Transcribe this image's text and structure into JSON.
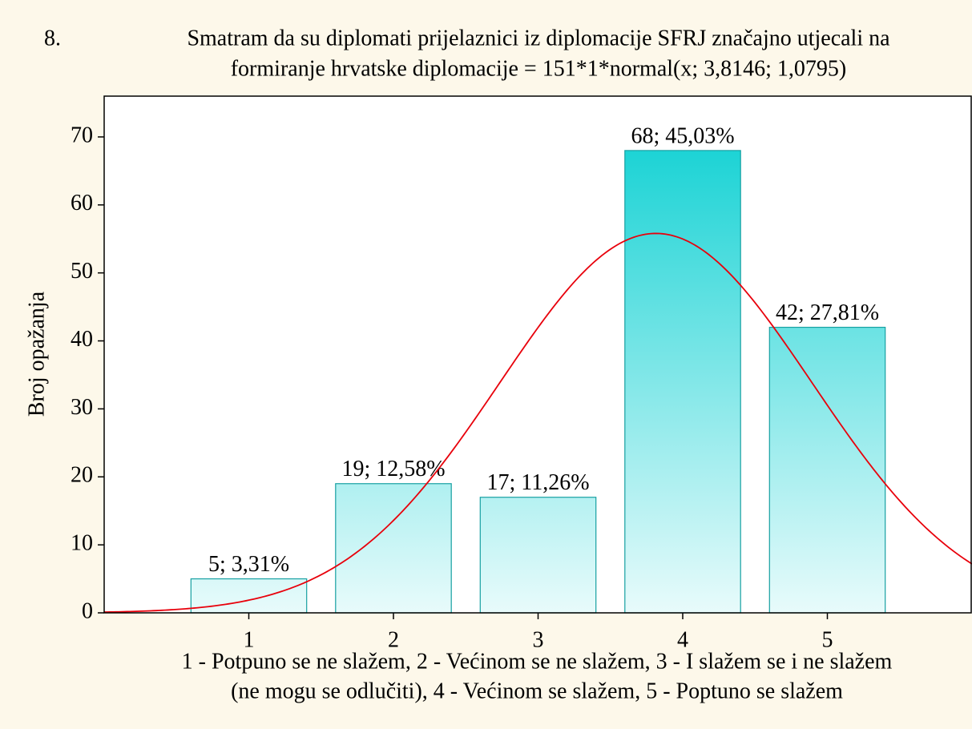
{
  "chart_data": {
    "type": "histogram",
    "number": "8.",
    "title": [
      "Smatram da su diplomati prijelaznici iz diplomacije SFRJ značajno utjecali na",
      "formiranje hrvatske diplomacije = 151*1*normal(x; 3,8146; 1,0795)"
    ],
    "x": [
      1,
      2,
      3,
      4,
      5
    ],
    "values": [
      5,
      19,
      17,
      68,
      42
    ],
    "value_labels": [
      "5; 3,31%",
      "19; 12,58%",
      "17; 11,26%",
      "68; 45,03%",
      "42; 27,81%"
    ],
    "bar_width": 0.8,
    "color_top": "#16d2d4",
    "color_bottom": "#e8fbfb",
    "edge_color": "#17a0a2",
    "fit": {
      "count": 151,
      "bin_width": 1,
      "mean": 3.8146,
      "sd": 1.0795,
      "color": "#e8000b"
    },
    "xlim": [
      0,
      6
    ],
    "xticks": [
      1,
      2,
      3,
      4,
      5
    ],
    "ylim": [
      0,
      76
    ],
    "yticks": [
      0,
      10,
      20,
      30,
      40,
      50,
      60,
      70
    ],
    "ylabel": "Broj opažanja",
    "xlabel": [
      "1 - Potpuno se ne slažem, 2 - Većinom se ne slažem, 3 - I slažem se i ne slažem",
      "(ne mogu se odlučiti), 4 - Većinom se slažem, 5 - Poptuno se slažem"
    ],
    "grid": false
  }
}
